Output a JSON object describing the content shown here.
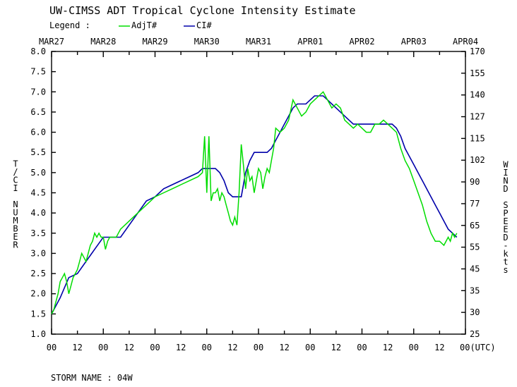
{
  "chart_data": {
    "type": "line",
    "title": "UW-CIMSS ADT Tropical Cyclone Intensity Estimate",
    "legend": {
      "label": "Legend :",
      "placement": "top-left",
      "entries": [
        {
          "name": "AdjT#",
          "color": "#00dd00"
        },
        {
          "name": "CI#",
          "color": "#0000aa"
        }
      ]
    },
    "ylabel_left": "T/CI NUMBER",
    "ylabel_right": "WIND SPEED-kts",
    "xlabel_unit": "00(UTC)",
    "ylim": [
      1.0,
      8.0
    ],
    "xlim_hours": [
      0,
      192
    ],
    "date_labels": [
      "MAR27",
      "MAR28",
      "MAR29",
      "MAR30",
      "MAR31",
      "APR01",
      "APR02",
      "APR03",
      "APR04"
    ],
    "hour_tick_labels": [
      "00",
      "12",
      "00",
      "12",
      "00",
      "12",
      "00",
      "12",
      "00",
      "12",
      "00",
      "12",
      "00",
      "12",
      "00",
      "12"
    ],
    "left_tick_labels": [
      "1.0",
      "1.5",
      "2.0",
      "2.5",
      "3.0",
      "3.5",
      "4.0",
      "4.5",
      "5.0",
      "5.5",
      "6.0",
      "6.5",
      "7.0",
      "7.5",
      "8.0"
    ],
    "right_tick_labels": [
      "25",
      "30",
      "35",
      "45",
      "55",
      "65",
      "77",
      "90",
      "102",
      "115",
      "127",
      "140",
      "155",
      "170"
    ],
    "series": [
      {
        "name": "AdjT#",
        "color": "#00dd00",
        "x_hours": [
          0,
          1,
          2,
          3,
          4,
          5,
          6,
          7,
          8,
          9,
          10,
          11,
          12,
          13,
          14,
          15,
          16,
          17,
          18,
          19,
          20,
          21,
          22,
          23,
          24,
          25,
          26,
          27,
          28,
          29,
          30,
          31,
          32,
          36,
          40,
          44,
          48,
          52,
          56,
          60,
          64,
          68,
          70,
          71,
          72,
          73,
          74,
          75,
          76,
          77,
          78,
          79,
          80,
          81,
          82,
          83,
          84,
          85,
          86,
          87,
          88,
          89,
          90,
          91,
          92,
          93,
          94,
          95,
          96,
          97,
          98,
          99,
          100,
          101,
          102,
          103,
          104,
          106,
          108,
          110,
          112,
          114,
          116,
          118,
          120,
          122,
          124,
          126,
          128,
          130,
          132,
          134,
          136,
          138,
          140,
          142,
          144,
          146,
          148,
          150,
          152,
          154,
          156,
          158,
          160,
          162,
          164,
          166,
          168,
          170,
          172,
          174,
          176,
          178,
          180,
          182,
          184,
          185,
          186,
          187,
          188
        ],
        "values": [
          1.5,
          1.6,
          1.8,
          2.0,
          2.3,
          2.4,
          2.5,
          2.3,
          2.0,
          2.2,
          2.4,
          2.5,
          2.6,
          2.8,
          3.0,
          2.9,
          2.8,
          3.0,
          3.2,
          3.3,
          3.5,
          3.4,
          3.5,
          3.4,
          3.4,
          3.1,
          3.3,
          3.4,
          3.4,
          3.4,
          3.4,
          3.5,
          3.6,
          3.8,
          4.0,
          4.2,
          4.4,
          4.5,
          4.6,
          4.7,
          4.8,
          4.9,
          5.0,
          5.9,
          4.5,
          5.9,
          4.3,
          4.5,
          4.5,
          4.6,
          4.3,
          4.5,
          4.4,
          4.2,
          4.0,
          3.8,
          3.7,
          3.9,
          3.7,
          4.5,
          5.7,
          5.2,
          4.6,
          5.1,
          4.8,
          4.9,
          4.5,
          4.8,
          5.1,
          5.0,
          4.6,
          4.9,
          5.1,
          5.0,
          5.3,
          5.6,
          6.1,
          6.0,
          6.1,
          6.3,
          6.8,
          6.6,
          6.4,
          6.5,
          6.7,
          6.8,
          6.9,
          7.0,
          6.8,
          6.6,
          6.7,
          6.6,
          6.3,
          6.2,
          6.1,
          6.2,
          6.1,
          6.0,
          6.0,
          6.2,
          6.2,
          6.3,
          6.2,
          6.1,
          6.0,
          5.6,
          5.3,
          5.1,
          4.8,
          4.5,
          4.2,
          3.8,
          3.5,
          3.3,
          3.3,
          3.2,
          3.4,
          3.3,
          3.5,
          3.4,
          3.5
        ]
      },
      {
        "name": "CI#",
        "color": "#0000aa",
        "x_hours": [
          0,
          4,
          8,
          12,
          16,
          20,
          24,
          28,
          32,
          36,
          40,
          44,
          48,
          52,
          56,
          60,
          64,
          68,
          70,
          72,
          74,
          76,
          78,
          80,
          82,
          84,
          86,
          88,
          90,
          92,
          94,
          96,
          98,
          100,
          102,
          104,
          106,
          108,
          110,
          112,
          114,
          116,
          118,
          120,
          122,
          124,
          126,
          128,
          130,
          132,
          134,
          136,
          138,
          140,
          142,
          144,
          146,
          148,
          150,
          152,
          154,
          156,
          158,
          160,
          162,
          164,
          166,
          168,
          170,
          172,
          174,
          176,
          178,
          180,
          182,
          184,
          186,
          188
        ],
        "values": [
          1.5,
          1.9,
          2.4,
          2.5,
          2.8,
          3.1,
          3.4,
          3.4,
          3.4,
          3.7,
          4.0,
          4.3,
          4.4,
          4.6,
          4.7,
          4.8,
          4.9,
          5.0,
          5.1,
          5.1,
          5.1,
          5.1,
          5.0,
          4.8,
          4.5,
          4.4,
          4.4,
          4.4,
          5.0,
          5.3,
          5.5,
          5.5,
          5.5,
          5.5,
          5.6,
          5.8,
          6.0,
          6.2,
          6.4,
          6.6,
          6.7,
          6.7,
          6.7,
          6.8,
          6.9,
          6.9,
          6.9,
          6.8,
          6.7,
          6.6,
          6.5,
          6.4,
          6.3,
          6.2,
          6.2,
          6.2,
          6.2,
          6.2,
          6.2,
          6.2,
          6.2,
          6.2,
          6.2,
          6.1,
          5.9,
          5.6,
          5.4,
          5.2,
          5.0,
          4.8,
          4.6,
          4.4,
          4.2,
          4.0,
          3.8,
          3.6,
          3.5,
          3.4
        ]
      }
    ],
    "grid": false
  },
  "footer": {
    "storm_label": "STORM NAME : 04W"
  }
}
